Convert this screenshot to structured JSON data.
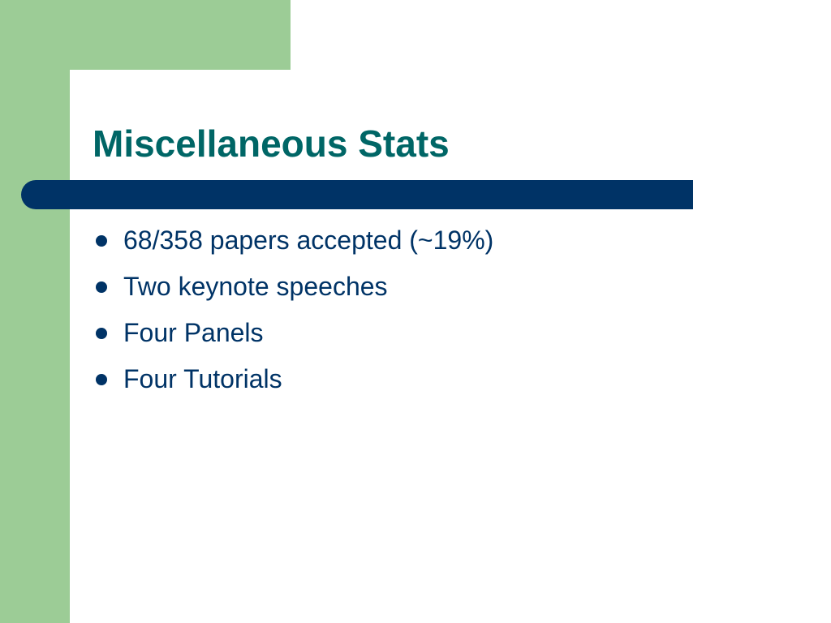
{
  "slide": {
    "title": "Miscellaneous Stats",
    "bullets": [
      "68/358 papers accepted (~19%)",
      "Two keynote speeches",
      "Four Panels",
      "Four Tutorials"
    ]
  }
}
